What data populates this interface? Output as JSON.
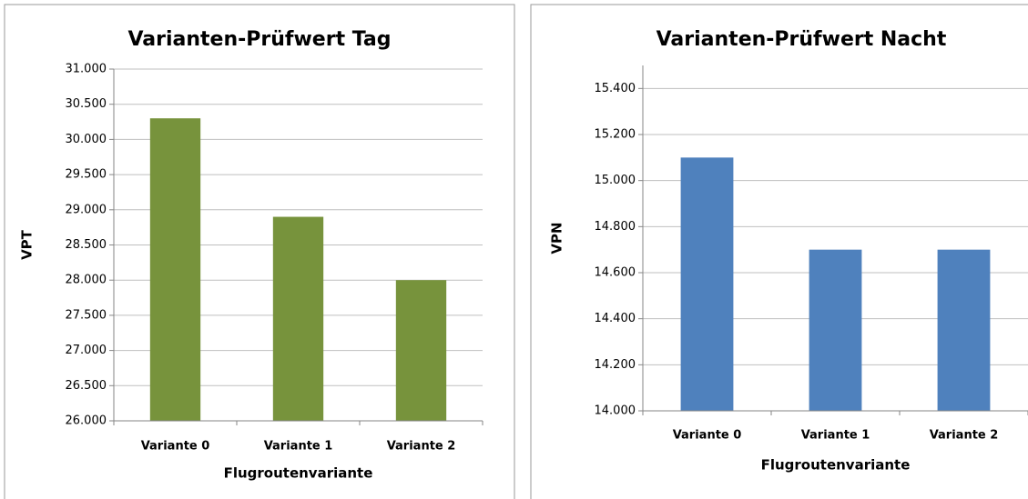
{
  "chart_data": [
    {
      "type": "bar",
      "title": "Varianten-Prüfwert Tag",
      "x_label": "Flugroutenvariante",
      "y_label": "VPT",
      "categories": [
        "Variante 0",
        "Variante 1",
        "Variante 2"
      ],
      "values": [
        30300,
        28900,
        28000
      ],
      "color": "#77933c",
      "ylim": [
        26000,
        31000
      ],
      "yticks": [
        {
          "value": 26000,
          "label": "26.000"
        },
        {
          "value": 26500,
          "label": "26.500"
        },
        {
          "value": 27000,
          "label": "27.000"
        },
        {
          "value": 27500,
          "label": "27.500"
        },
        {
          "value": 28000,
          "label": "28.000"
        },
        {
          "value": 28500,
          "label": "28.500"
        },
        {
          "value": 29000,
          "label": "29.000"
        },
        {
          "value": 29500,
          "label": "29.500"
        },
        {
          "value": 30000,
          "label": "30.000"
        },
        {
          "value": 30500,
          "label": "30.500"
        },
        {
          "value": 31000,
          "label": "31.000"
        }
      ],
      "grid": true
    },
    {
      "type": "bar",
      "title": "Varianten-Prüfwert Nacht",
      "x_label": "Flugroutenvariante",
      "y_label": "VPN",
      "categories": [
        "Variante 0",
        "Variante 1",
        "Variante 2"
      ],
      "values": [
        15100,
        14700,
        14700
      ],
      "color": "#4f81bd",
      "ylim": [
        14000,
        15500
      ],
      "yticks": [
        {
          "value": 14000,
          "label": "14.000"
        },
        {
          "value": 14200,
          "label": "14.200"
        },
        {
          "value": 14400,
          "label": "14.400"
        },
        {
          "value": 14600,
          "label": "14.600"
        },
        {
          "value": 14800,
          "label": "14.800"
        },
        {
          "value": 15000,
          "label": "15.000"
        },
        {
          "value": 15200,
          "label": "15.200"
        },
        {
          "value": 15400,
          "label": "15.400"
        }
      ],
      "grid": true
    }
  ]
}
